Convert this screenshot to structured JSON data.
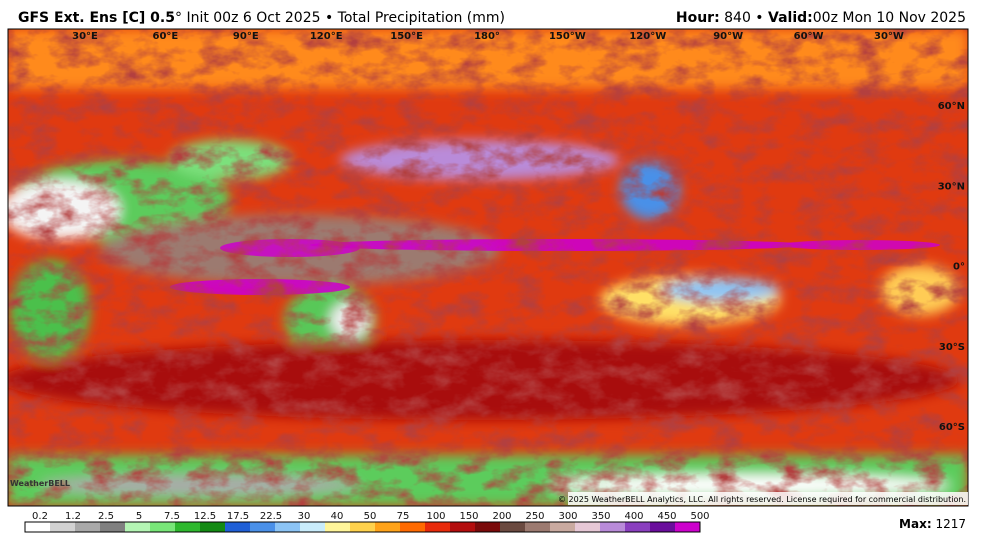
{
  "header": {
    "title_bold": "GFS Ext.  Ens [C] 0.5",
    "title_degree": "°",
    "title_rest": "Init 00z 6 Oct 2025 • Total Precipitation (mm)",
    "hour_label": "Hour:",
    "hour_value": "840 •",
    "valid_label": "Valid:",
    "valid_value": "00z Mon 10 Nov 2025"
  },
  "map": {
    "longitudes": [
      "30°E",
      "60°E",
      "90°E",
      "120°E",
      "150°E",
      "180°",
      "150°W",
      "120°W",
      "90°W",
      "60°W",
      "30°W"
    ],
    "latitudes": [
      "60°N",
      "30°N",
      "0°",
      "30°S",
      "60°S"
    ],
    "logo": "WeatherBELL",
    "copyright": "© 2025 WeatherBELL Analytics, LLC. All rights reserved. License required for commercial distribution."
  },
  "colorbar": {
    "levels": [
      0.2,
      1.2,
      2.5,
      5,
      7.5,
      12.5,
      17.5,
      22.5,
      30,
      40,
      50,
      75,
      100,
      150,
      200,
      250,
      300,
      350,
      400,
      450,
      500
    ],
    "colors": [
      "#ffffff",
      "#d2d2d2",
      "#a9a9a9",
      "#808080",
      "#b4f5b4",
      "#78e678",
      "#2eb82e",
      "#138a13",
      "#1f5fd6",
      "#4a90e8",
      "#8cc4f5",
      "#c9ecfb",
      "#fff59a",
      "#ffd24d",
      "#ffa31a",
      "#ff6a00",
      "#e82a0a",
      "#b30d0d",
      "#7a0a0a",
      "#6b4a40",
      "#9c7a70",
      "#c9aaa0",
      "#e6c8d6",
      "#b98bd9",
      "#8a3fbf",
      "#6a0d9c",
      "#cc00cc"
    ],
    "max_label": "Max:",
    "max_value": 1217
  }
}
